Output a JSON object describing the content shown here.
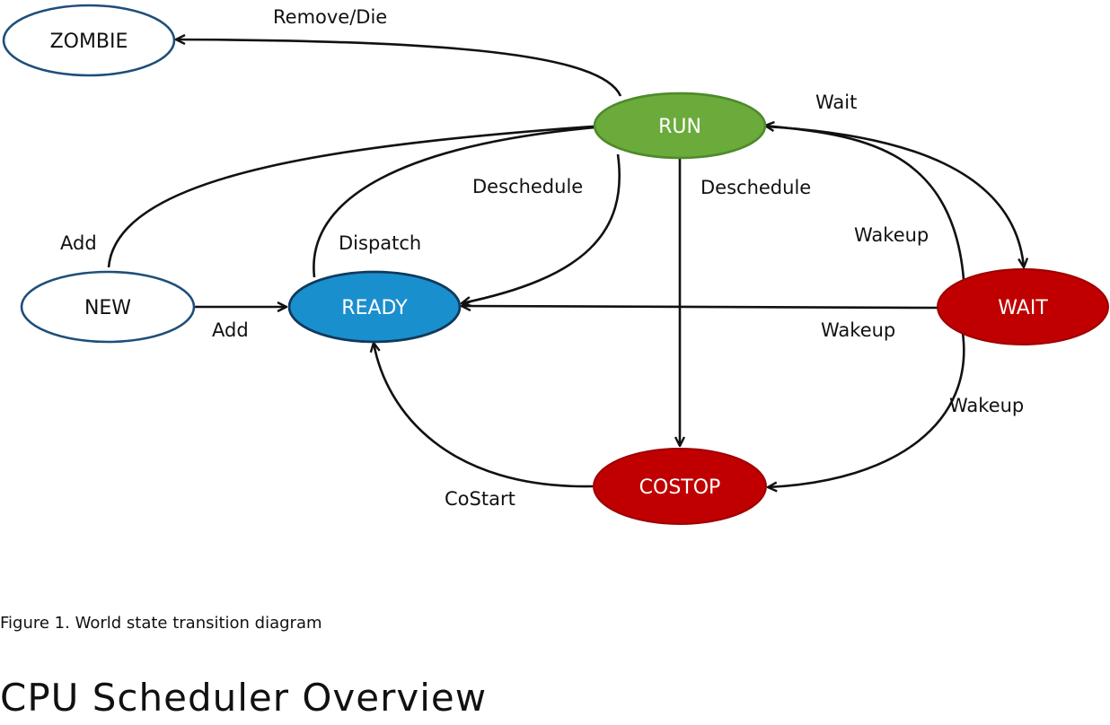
{
  "diagram": {
    "nodes": {
      "zombie": {
        "label": "ZOMBIE",
        "fill": "#ffffff",
        "stroke": "#1f4e79",
        "text_color": "#111111"
      },
      "run": {
        "label": "RUN",
        "fill": "#6aab3c",
        "stroke": "#4e8a2a",
        "text_color": "#ffffff"
      },
      "new": {
        "label": "NEW",
        "fill": "#ffffff",
        "stroke": "#1f4e79",
        "text_color": "#111111"
      },
      "ready": {
        "label": "READY",
        "fill": "#1a8fce",
        "stroke": "#103a5c",
        "text_color": "#ffffff"
      },
      "wait": {
        "label": "WAIT",
        "fill": "#c00000",
        "stroke": "#9c0000",
        "text_color": "#ffffff"
      },
      "costop": {
        "label": "COSTOP",
        "fill": "#c00000",
        "stroke": "#9c0000",
        "text_color": "#ffffff"
      }
    },
    "edges": {
      "run_zombie": "Remove/Die",
      "new_run": "Add",
      "new_ready": "Add",
      "ready_run": "Dispatch",
      "run_ready": "Deschedule",
      "run_costop": "Deschedule",
      "run_wait": "Wait",
      "wait_run": "Wakeup",
      "wait_ready": "Wakeup",
      "wait_costop": "Wakeup",
      "costop_ready": "CoStart"
    }
  },
  "caption": "Figure 1. World state transition diagram",
  "section_heading": "CPU Scheduler Overview"
}
